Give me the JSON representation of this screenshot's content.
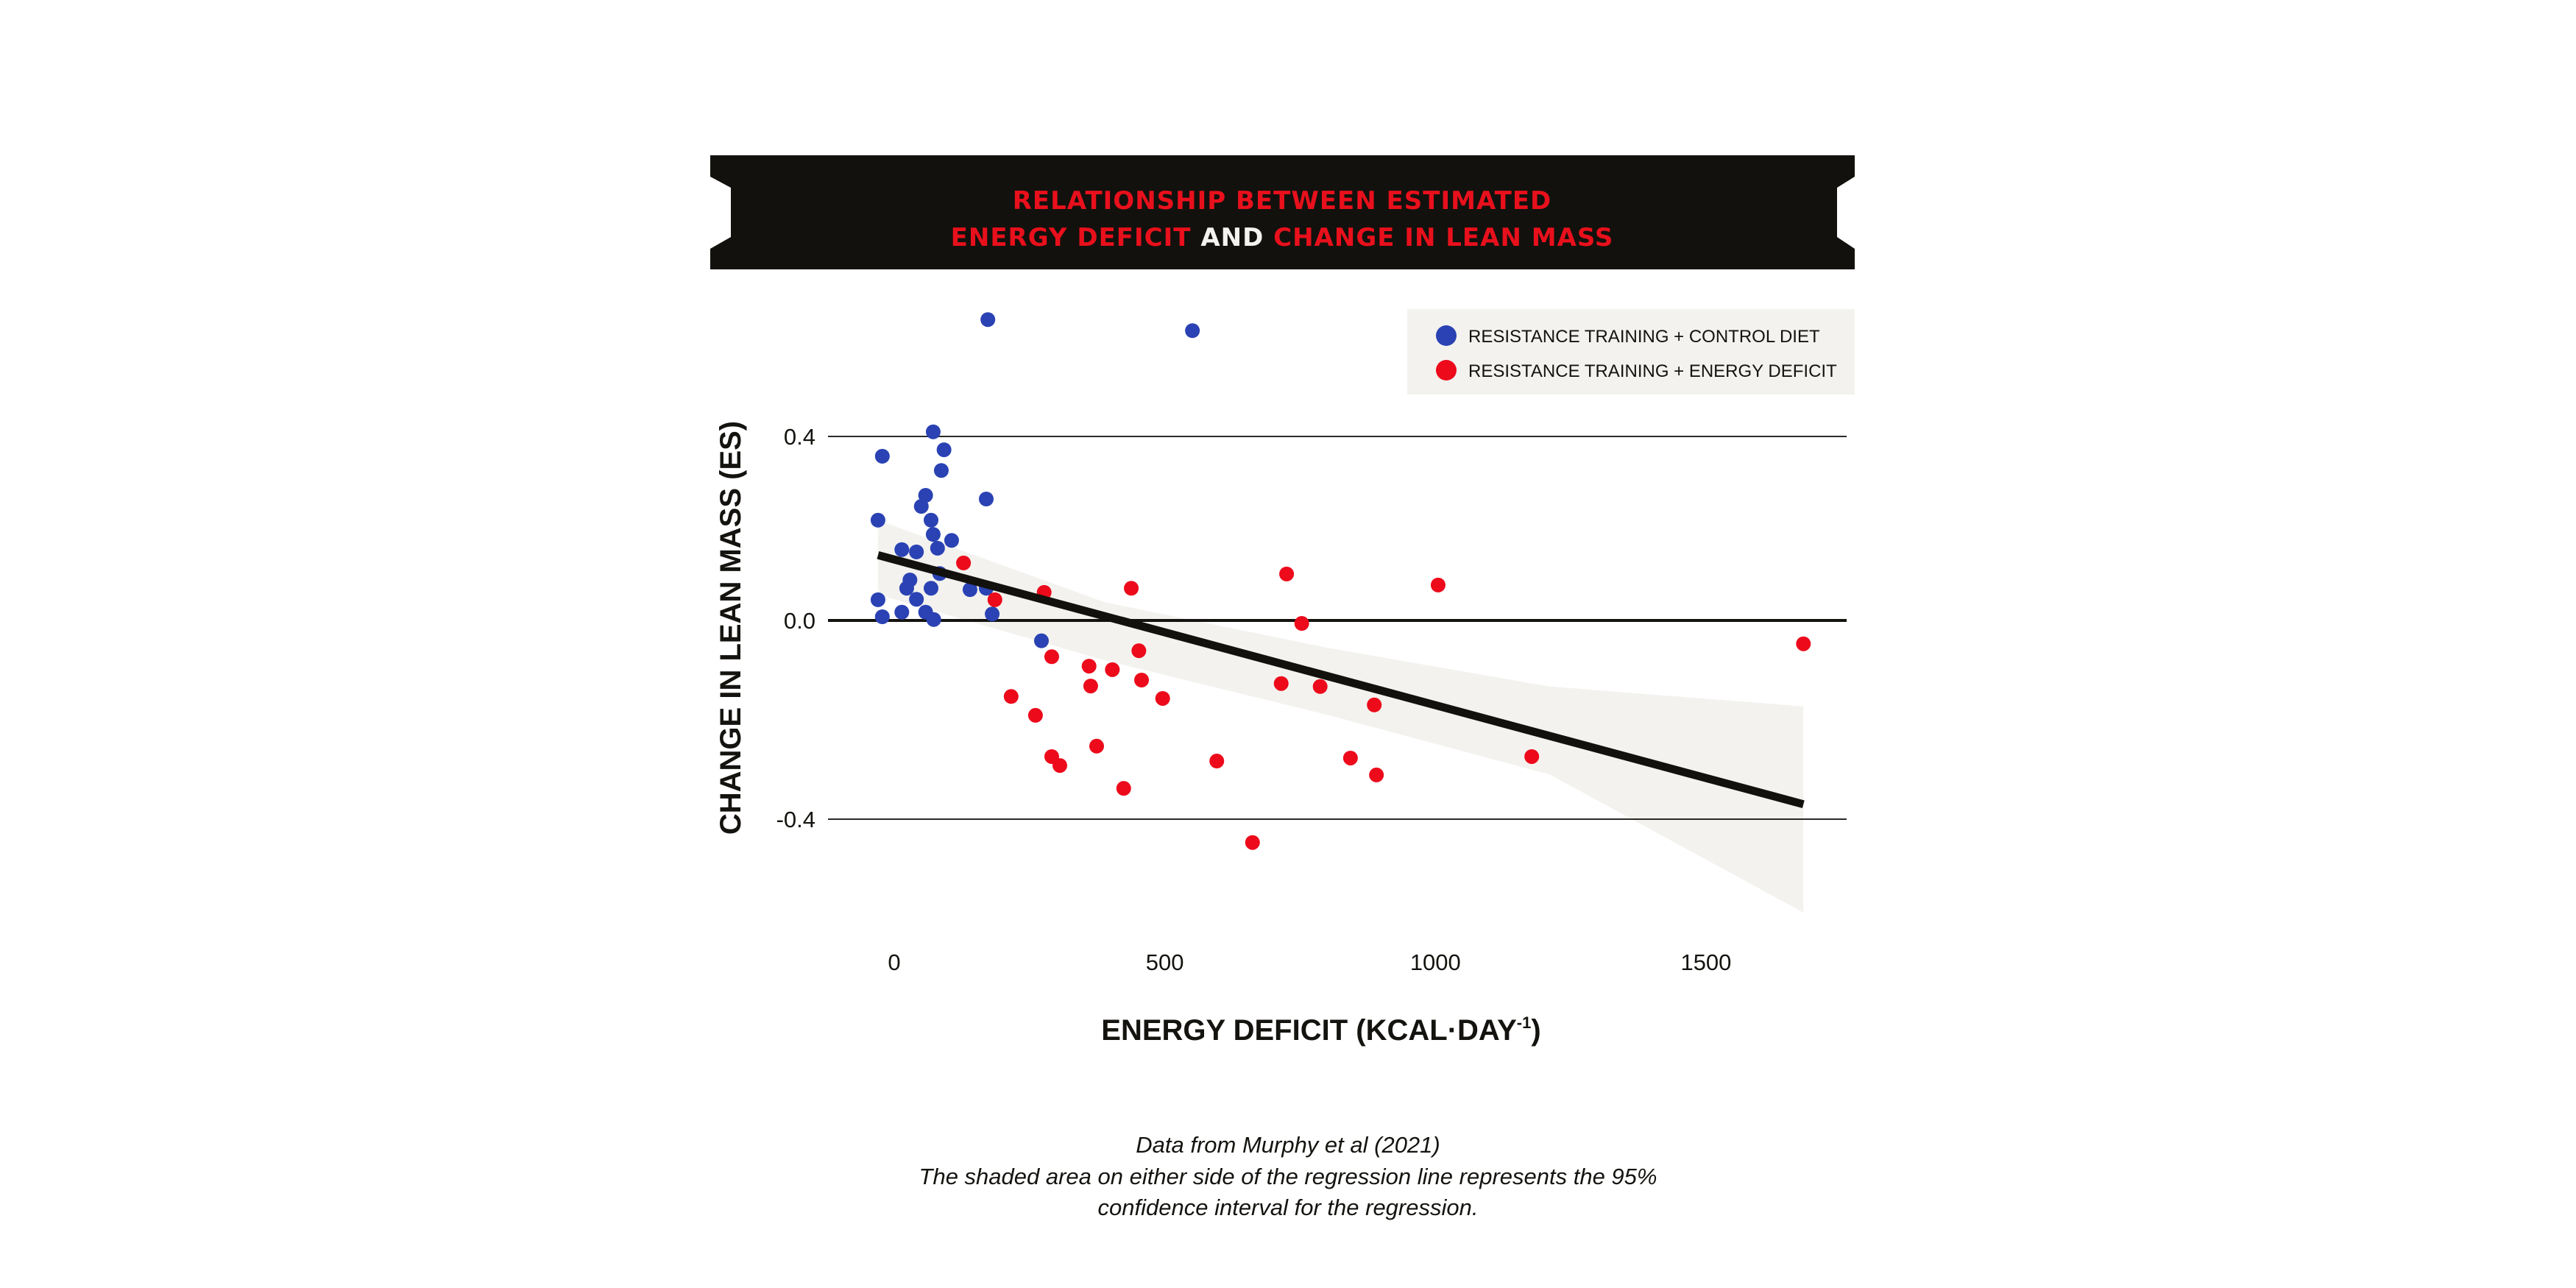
{
  "colors": {
    "banner_bg": "#12110d",
    "title_red": "#e8101c",
    "title_white": "#f4f2ee",
    "series_control": "#2a42b3",
    "series_deficit": "#ec0a1b",
    "ci_band": "#f3f2ef",
    "regression": "#12110d",
    "legend_bg": "#f3f2ef"
  },
  "chart_data": {
    "type": "scatter",
    "title_parts": [
      {
        "line": 1,
        "text": "RELATIONSHIP BETWEEN ESTIMATED",
        "color": "red"
      },
      {
        "line": 2,
        "text": "ENERGY DEFICIT",
        "color": "red"
      },
      {
        "line": 2,
        "text": "AND",
        "color": "white"
      },
      {
        "line": 2,
        "text": "CHANGE IN LEAN MASS",
        "color": "red"
      }
    ],
    "xlabel": "ENERGY DEFICIT (KCAL·DAY",
    "xlabel_superscript": "-1",
    "xlabel_close": ")",
    "ylabel": "CHANGE IN LEAN MASS (ES)",
    "xlim": [
      -50,
      1750
    ],
    "ylim": [
      -0.55,
      0.7
    ],
    "xticks": [
      0,
      500,
      1000,
      1500
    ],
    "xtick_labels": [
      "0",
      "500",
      "1000",
      "1500"
    ],
    "yticks": [
      0.4,
      0.0,
      -0.4
    ],
    "ytick_labels": [
      "0.4",
      "0.0",
      "-0.4"
    ],
    "grid": "horizontal",
    "legend_position": "top-right",
    "series": [
      {
        "name": "RESISTANCE TRAINING + CONTROL DIET",
        "color_key": "series_control",
        "points": [
          [
            173,
            0.654
          ],
          [
            551,
            0.63
          ],
          [
            72,
            0.41
          ],
          [
            -22,
            0.357
          ],
          [
            92,
            0.371
          ],
          [
            87,
            0.326
          ],
          [
            58,
            0.272
          ],
          [
            170,
            0.264
          ],
          [
            50,
            0.248
          ],
          [
            -30,
            0.218
          ],
          [
            68,
            0.218
          ],
          [
            72,
            0.187
          ],
          [
            106,
            0.174
          ],
          [
            14,
            0.154
          ],
          [
            41,
            0.149
          ],
          [
            80,
            0.157
          ],
          [
            84,
            0.102
          ],
          [
            29,
            0.088
          ],
          [
            23,
            0.07
          ],
          [
            68,
            0.07
          ],
          [
            140,
            0.067
          ],
          [
            170,
            0.07
          ],
          [
            -30,
            0.045
          ],
          [
            41,
            0.046
          ],
          [
            14,
            0.018
          ],
          [
            58,
            0.018
          ],
          [
            -22,
            0.008
          ],
          [
            73,
            0.002
          ],
          [
            181,
            0.014
          ],
          [
            272,
            -0.041
          ]
        ]
      },
      {
        "name": "RESISTANCE TRAINING + ENERGY DEFICIT",
        "color_key": "series_deficit",
        "points": [
          [
            128,
            0.125
          ],
          [
            277,
            0.061
          ],
          [
            186,
            0.045
          ],
          [
            438,
            0.07
          ],
          [
            291,
            -0.073
          ],
          [
            360,
            -0.092
          ],
          [
            403,
            -0.099
          ],
          [
            452,
            -0.061
          ],
          [
            363,
            -0.132
          ],
          [
            457,
            -0.12
          ],
          [
            496,
            -0.157
          ],
          [
            216,
            -0.153
          ],
          [
            261,
            -0.191
          ],
          [
            291,
            -0.274
          ],
          [
            306,
            -0.292
          ],
          [
            374,
            -0.253
          ],
          [
            424,
            -0.338
          ],
          [
            596,
            -0.283
          ],
          [
            662,
            -0.447
          ],
          [
            725,
            0.101
          ],
          [
            1005,
            0.077
          ],
          [
            753,
            -0.006
          ],
          [
            715,
            -0.127
          ],
          [
            787,
            -0.133
          ],
          [
            887,
            -0.17
          ],
          [
            843,
            -0.277
          ],
          [
            891,
            -0.311
          ],
          [
            1178,
            -0.274
          ],
          [
            1680,
            -0.047
          ]
        ]
      }
    ],
    "regression": {
      "x": [
        -30,
        1680
      ],
      "y": [
        0.142,
        -0.37
      ]
    },
    "confidence_band": {
      "x": [
        -30,
        388,
        800,
        1211,
        1680
      ],
      "upper": [
        0.218,
        0.04,
        -0.055,
        -0.133,
        -0.173
      ],
      "lower": [
        0.056,
        -0.08,
        -0.19,
        -0.31,
        -0.588
      ]
    }
  },
  "caption": {
    "source": "Data from Murphy et al (2021)",
    "note_line1": "The shaded area on either side of the regression line represents the 95%",
    "note_line2": "confidence interval for the regression."
  }
}
